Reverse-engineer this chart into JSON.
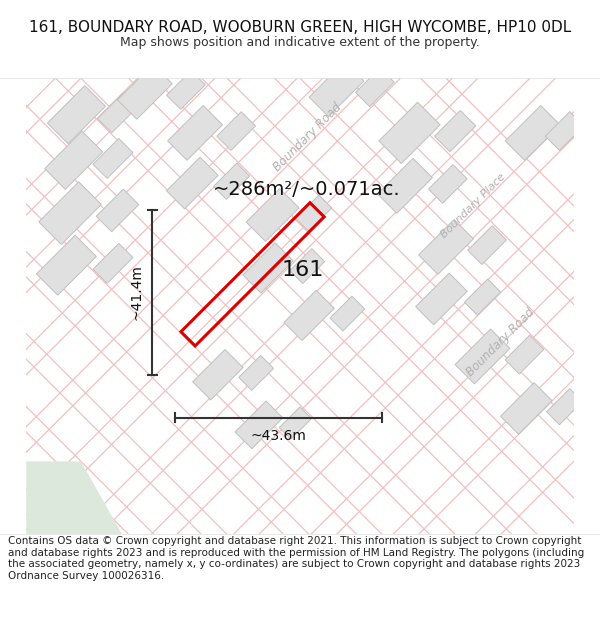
{
  "title": "161, BOUNDARY ROAD, WOOBURN GREEN, HIGH WYCOMBE, HP10 0DL",
  "subtitle": "Map shows position and indicative extent of the property.",
  "footer": "Contains OS data © Crown copyright and database right 2021. This information is subject to Crown copyright and database rights 2023 and is reproduced with the permission of HM Land Registry. The polygons (including the associated geometry, namely x, y co-ordinates) are subject to Crown copyright and database rights 2023 Ordnance Survey 100026316.",
  "area_label": "~286m²/~0.071ac.",
  "property_label": "161",
  "width_label": "~43.6m",
  "height_label": "~41.4m",
  "road_color": "#f2c0c0",
  "road_label_color": "#b0b0b0",
  "plot_outline_color": "#dd0000",
  "building_fill": "#e0e0e0",
  "building_outline": "#c0c0c0",
  "title_fontsize": 11,
  "subtitle_fontsize": 9,
  "footer_fontsize": 7.5
}
